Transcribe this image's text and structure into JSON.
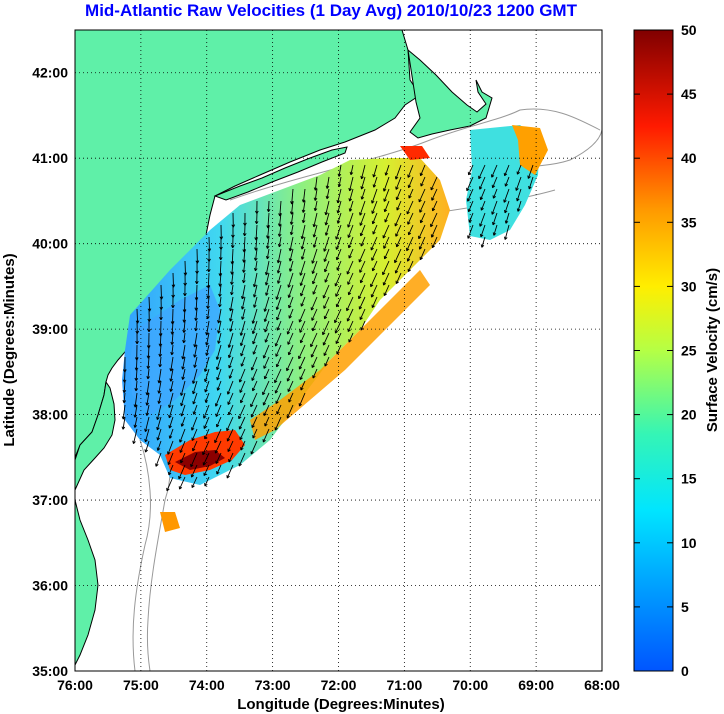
{
  "title": "Mid-Atlantic Raw Velocities (1 Day Avg) 2010/10/23 1200 GMT",
  "map": {
    "xlabel": "Longitude (Degrees:Minutes)",
    "ylabel": "Latitude (Degrees:Minutes)",
    "lon_range": [
      -76,
      -68
    ],
    "lat_range": [
      35,
      42.5
    ],
    "lon_ticks": [
      {
        "value": -76,
        "label": "76:00"
      },
      {
        "value": -75,
        "label": "75:00"
      },
      {
        "value": -74,
        "label": "74:00"
      },
      {
        "value": -73,
        "label": "73:00"
      },
      {
        "value": -72,
        "label": "72:00"
      },
      {
        "value": -71,
        "label": "71:00"
      },
      {
        "value": -70,
        "label": "70:00"
      },
      {
        "value": -69,
        "label": "69:00"
      },
      {
        "value": -68,
        "label": "68:00"
      }
    ],
    "lat_ticks": [
      {
        "value": 35,
        "label": "35:00"
      },
      {
        "value": 36,
        "label": "36:00"
      },
      {
        "value": 37,
        "label": "37:00"
      },
      {
        "value": 38,
        "label": "38:00"
      },
      {
        "value": 39,
        "label": "39:00"
      },
      {
        "value": 40,
        "label": "40:00"
      },
      {
        "value": 41,
        "label": "41:00"
      },
      {
        "value": 42,
        "label": "42:00"
      }
    ],
    "grid": "dotted",
    "colors": {
      "land": "#5ff0a8",
      "ocean": "#ffffff",
      "coastline": "#000000",
      "bathymetry": "#999999"
    }
  },
  "colorbar": {
    "label": "Surface Velocity (cm/s)",
    "min": 0,
    "max": 50,
    "ticks": [
      "0",
      "5",
      "10",
      "15",
      "20",
      "25",
      "30",
      "35",
      "40",
      "45",
      "50"
    ],
    "colormap": "jet"
  }
}
